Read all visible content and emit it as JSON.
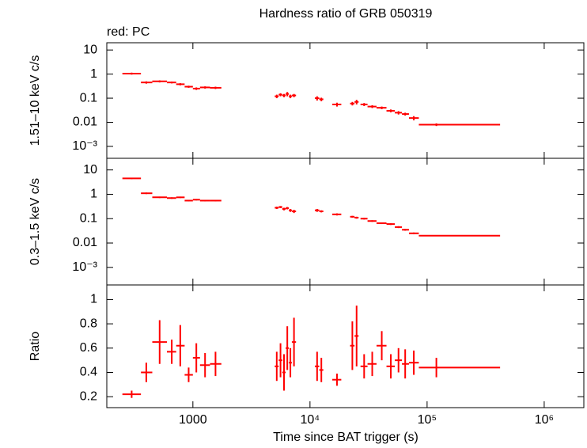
{
  "chart_data": [
    {
      "type": "scatter",
      "title": "Hardness ratio of GRB 050319",
      "annotation": "red: PC",
      "ylabel": "1.51–10 keV c/s",
      "yscale": "log",
      "ylim": [
        0.00032,
        20
      ],
      "yticks": [
        10,
        1,
        0.1,
        0.01,
        {
          "value": 0.001,
          "label": "10⁻³"
        }
      ],
      "series": [
        {
          "color": "#ff0000",
          "x": [
            300,
            400,
            520,
            660,
            780,
            920,
            1070,
            1270,
            1560,
            5200,
            5600,
            6000,
            6400,
            6800,
            7300,
            11500,
            12500,
            17000,
            23000,
            25000,
            29000,
            34000,
            41000,
            49000,
            57000,
            65000,
            77000,
            120000
          ],
          "x_min": [
            250,
            360,
            450,
            600,
            720,
            850,
            1000,
            1150,
            1400,
            5000,
            5400,
            5800,
            6200,
            6600,
            7000,
            11000,
            12000,
            15500,
            22000,
            24000,
            27000,
            31000,
            37000,
            45000,
            53000,
            61000,
            70000,
            85000
          ],
          "x_max": [
            360,
            450,
            600,
            720,
            850,
            1000,
            1150,
            1400,
            1750,
            5400,
            5800,
            6200,
            6600,
            7000,
            7600,
            12000,
            13000,
            18500,
            24000,
            26000,
            31000,
            37000,
            45000,
            53000,
            61000,
            70000,
            85000,
            420000
          ],
          "values": [
            1.05,
            0.45,
            0.5,
            0.45,
            0.38,
            0.3,
            0.25,
            0.28,
            0.27,
            0.12,
            0.14,
            0.13,
            0.15,
            0.12,
            0.13,
            0.1,
            0.09,
            0.055,
            0.06,
            0.07,
            0.055,
            0.045,
            0.04,
            0.03,
            0.025,
            0.022,
            0.015,
            0.008
          ],
          "errors": [
            0.1,
            0.05,
            0.05,
            0.04,
            0.04,
            0.03,
            0.03,
            0.03,
            0.03,
            0.02,
            0.02,
            0.02,
            0.03,
            0.02,
            0.02,
            0.02,
            0.015,
            0.01,
            0.01,
            0.015,
            0.008,
            0.006,
            0.005,
            0.004,
            0.004,
            0.003,
            0.003,
            0.001
          ]
        }
      ]
    },
    {
      "type": "scatter",
      "ylabel": "0.3–1.5 keV c/s",
      "yscale": "log",
      "ylim": [
        0.00019,
        30
      ],
      "yticks": [
        10,
        1,
        0.1,
        0.01,
        {
          "value": 0.001,
          "label": "10⁻³"
        }
      ],
      "series": [
        {
          "color": "#ff0000",
          "x": [
            300,
            400,
            520,
            660,
            780,
            920,
            1070,
            1270,
            1560,
            5200,
            5600,
            6000,
            6400,
            6800,
            7300,
            11500,
            12500,
            17000,
            23000,
            25000,
            29000,
            34000,
            41000,
            49000,
            57000,
            65000,
            77000,
            120000
          ],
          "x_min": [
            250,
            360,
            450,
            600,
            720,
            850,
            1000,
            1150,
            1400,
            5000,
            5400,
            5800,
            6200,
            6600,
            7000,
            11000,
            12000,
            15500,
            22000,
            24000,
            27000,
            31000,
            37000,
            45000,
            53000,
            61000,
            70000,
            85000
          ],
          "x_max": [
            360,
            450,
            600,
            720,
            850,
            1000,
            1150,
            1400,
            1750,
            5400,
            5800,
            6200,
            6600,
            7000,
            7600,
            12000,
            13000,
            18500,
            24000,
            26000,
            31000,
            37000,
            45000,
            53000,
            61000,
            70000,
            85000,
            420000
          ],
          "values": [
            4.5,
            1.1,
            0.75,
            0.7,
            0.75,
            0.55,
            0.6,
            0.55,
            0.55,
            0.28,
            0.3,
            0.25,
            0.27,
            0.22,
            0.2,
            0.22,
            0.2,
            0.15,
            0.12,
            0.11,
            0.1,
            0.08,
            0.065,
            0.06,
            0.045,
            0.035,
            0.025,
            0.02
          ],
          "errors": [
            0.3,
            0.08,
            0.05,
            0.05,
            0.05,
            0.04,
            0.04,
            0.04,
            0.04,
            0.03,
            0.03,
            0.03,
            0.03,
            0.03,
            0.03,
            0.03,
            0.02,
            0.015,
            0.01,
            0.01,
            0.008,
            0.006,
            0.005,
            0.005,
            0.004,
            0.003,
            0.002,
            0.001
          ]
        }
      ]
    },
    {
      "type": "scatter",
      "ylabel": "Ratio",
      "xlabel": "Time since BAT trigger (s)",
      "xscale": "log",
      "xlim": [
        184,
        2180000
      ],
      "xticks": [
        1000,
        {
          "value": 10000,
          "label": "10⁴"
        },
        {
          "value": 100000,
          "label": "10⁵"
        },
        {
          "value": 1000000,
          "label": "10⁶"
        }
      ],
      "ylim": [
        0.11,
        1.12
      ],
      "yticks": [
        0.2,
        0.4,
        0.6,
        0.8,
        1
      ],
      "series": [
        {
          "color": "#ff0000",
          "x": [
            300,
            400,
            520,
            660,
            780,
            920,
            1070,
            1270,
            1560,
            5200,
            5600,
            6000,
            6400,
            6800,
            7300,
            11500,
            12500,
            17000,
            23000,
            25000,
            29000,
            34000,
            41000,
            49000,
            57000,
            65000,
            77000,
            120000
          ],
          "x_min": [
            250,
            360,
            450,
            600,
            720,
            850,
            1000,
            1150,
            1400,
            5000,
            5400,
            5800,
            6200,
            6600,
            7000,
            11000,
            12000,
            15500,
            22000,
            24000,
            27000,
            31000,
            37000,
            45000,
            53000,
            61000,
            70000,
            85000
          ],
          "x_max": [
            360,
            450,
            600,
            720,
            850,
            1000,
            1150,
            1400,
            1750,
            5400,
            5800,
            6200,
            6600,
            7000,
            7600,
            12000,
            13000,
            18500,
            24000,
            26000,
            31000,
            37000,
            45000,
            53000,
            61000,
            70000,
            85000,
            420000
          ],
          "values": [
            0.22,
            0.4,
            0.65,
            0.57,
            0.62,
            0.38,
            0.52,
            0.46,
            0.47,
            0.45,
            0.5,
            0.4,
            0.6,
            0.48,
            0.65,
            0.45,
            0.42,
            0.34,
            0.62,
            0.7,
            0.45,
            0.47,
            0.62,
            0.45,
            0.5,
            0.47,
            0.48,
            0.44
          ],
          "errors": [
            0.03,
            0.08,
            0.18,
            0.1,
            0.17,
            0.06,
            0.12,
            0.1,
            0.1,
            0.12,
            0.14,
            0.15,
            0.18,
            0.12,
            0.2,
            0.12,
            0.1,
            0.05,
            0.2,
            0.25,
            0.1,
            0.1,
            0.12,
            0.1,
            0.1,
            0.12,
            0.1,
            0.08
          ]
        }
      ]
    }
  ]
}
